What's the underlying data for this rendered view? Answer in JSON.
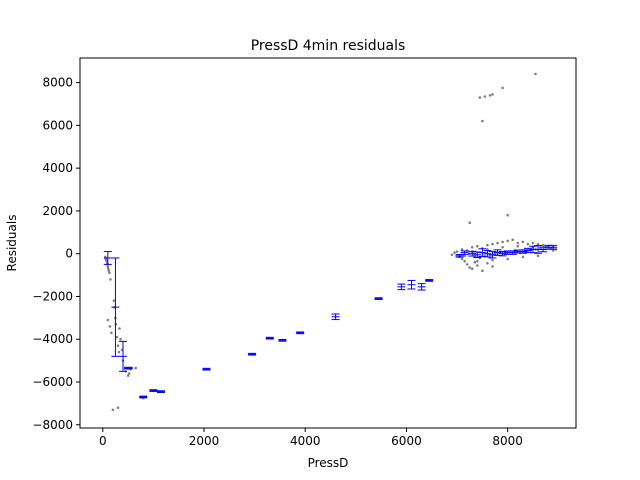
{
  "chart_data": {
    "type": "scatter",
    "title": "PressD 4min residuals",
    "xlabel": "PressD",
    "ylabel": "Residuals",
    "xlim": [
      -450,
      9350
    ],
    "ylim": [
      -8150,
      9150
    ],
    "xticks": [
      0,
      2000,
      4000,
      6000,
      8000
    ],
    "yticks": [
      -8000,
      -6000,
      -4000,
      -2000,
      0,
      2000,
      4000,
      6000,
      8000
    ],
    "grid": false,
    "colors": {
      "scatter": "#808080",
      "errorbar": "#0000ff"
    },
    "series": [
      {
        "kind": "scatter",
        "points": [
          [
            50,
            -150
          ],
          [
            60,
            -250
          ],
          [
            70,
            -300
          ],
          [
            80,
            -350
          ],
          [
            90,
            -450
          ],
          [
            95,
            -500
          ],
          [
            100,
            -600
          ],
          [
            110,
            -700
          ],
          [
            120,
            -800
          ],
          [
            130,
            -900
          ],
          [
            150,
            -1200
          ],
          [
            100,
            -3100
          ],
          [
            140,
            -3400
          ],
          [
            170,
            -3700
          ],
          [
            220,
            -2200
          ],
          [
            230,
            -2500
          ],
          [
            250,
            -3000
          ],
          [
            260,
            -3300
          ],
          [
            280,
            -3900
          ],
          [
            300,
            -4300
          ],
          [
            320,
            -4600
          ],
          [
            330,
            -3500
          ],
          [
            350,
            -4000
          ],
          [
            380,
            -4500
          ],
          [
            400,
            -5000
          ],
          [
            450,
            -5500
          ],
          [
            500,
            -5700
          ],
          [
            520,
            -5600
          ],
          [
            550,
            -5400
          ],
          [
            580,
            -5350
          ],
          [
            650,
            -5350
          ],
          [
            750,
            -6700
          ],
          [
            800,
            -6750
          ],
          [
            1000,
            -6400
          ],
          [
            1100,
            -6450
          ],
          [
            200,
            -7300
          ],
          [
            300,
            -7200
          ],
          [
            7450,
            7300
          ],
          [
            7550,
            7350
          ],
          [
            7650,
            7400
          ],
          [
            7700,
            7450
          ],
          [
            7900,
            7750
          ],
          [
            8550,
            8400
          ],
          [
            7500,
            6200
          ],
          [
            7250,
            1450
          ],
          [
            8000,
            1800
          ],
          [
            6900,
            -50
          ],
          [
            6950,
            50
          ],
          [
            7050,
            -150
          ],
          [
            7100,
            -250
          ],
          [
            7150,
            -350
          ],
          [
            7200,
            -500
          ],
          [
            7250,
            -650
          ],
          [
            7300,
            -700
          ],
          [
            7350,
            -400
          ],
          [
            7400,
            -550
          ],
          [
            7500,
            -800
          ],
          [
            7600,
            -450
          ],
          [
            7700,
            -600
          ],
          [
            7000,
            100
          ],
          [
            7100,
            200
          ],
          [
            7200,
            150
          ],
          [
            7300,
            300
          ],
          [
            7400,
            350
          ],
          [
            7500,
            250
          ],
          [
            7600,
            400
          ],
          [
            7700,
            450
          ],
          [
            7800,
            500
          ],
          [
            7900,
            550
          ],
          [
            8000,
            600
          ],
          [
            8100,
            650
          ],
          [
            8200,
            500
          ],
          [
            8300,
            550
          ],
          [
            8400,
            450
          ],
          [
            8500,
            500
          ],
          [
            8600,
            450
          ],
          [
            8700,
            400
          ],
          [
            8800,
            350
          ],
          [
            8900,
            300
          ],
          [
            7150,
            -100
          ],
          [
            7250,
            0
          ],
          [
            7350,
            -150
          ],
          [
            7450,
            -200
          ],
          [
            7550,
            -100
          ],
          [
            7650,
            -50
          ],
          [
            7750,
            0
          ],
          [
            7850,
            50
          ],
          [
            7950,
            0
          ],
          [
            8050,
            100
          ],
          [
            8150,
            150
          ],
          [
            8250,
            50
          ],
          [
            8350,
            100
          ],
          [
            8450,
            150
          ],
          [
            8550,
            200
          ],
          [
            8650,
            250
          ],
          [
            8750,
            300
          ],
          [
            8850,
            250
          ],
          [
            8950,
            200
          ],
          [
            7300,
            100
          ],
          [
            7600,
            200
          ],
          [
            7900,
            300
          ],
          [
            8200,
            350
          ],
          [
            8500,
            300
          ],
          [
            8800,
            350
          ],
          [
            7400,
            -350
          ],
          [
            7700,
            -300
          ],
          [
            8000,
            -250
          ],
          [
            8300,
            -150
          ],
          [
            8600,
            -100
          ],
          [
            8900,
            150
          ]
        ]
      },
      {
        "kind": "errorbar",
        "bars": [
          [
            100,
            -200,
            300
          ],
          [
            250,
            -2500,
            2300
          ],
          [
            400,
            -4800,
            700
          ],
          [
            500,
            -5350,
            40
          ],
          [
            800,
            -6700,
            40
          ],
          [
            1000,
            -6400,
            40
          ],
          [
            1150,
            -6450,
            40
          ],
          [
            2050,
            -5400,
            40
          ],
          [
            2950,
            -4700,
            40
          ],
          [
            3300,
            -3950,
            40
          ],
          [
            3550,
            -4050,
            40
          ],
          [
            3900,
            -3700,
            40
          ],
          [
            4600,
            -2950,
            130
          ],
          [
            5450,
            -2100,
            40
          ],
          [
            5900,
            -1550,
            130
          ],
          [
            6100,
            -1450,
            200
          ],
          [
            6300,
            -1550,
            150
          ],
          [
            6450,
            -1250,
            40
          ],
          [
            7050,
            -100,
            60
          ],
          [
            7150,
            50,
            80
          ],
          [
            7300,
            0,
            110
          ],
          [
            7400,
            -50,
            130
          ],
          [
            7500,
            50,
            180
          ],
          [
            7600,
            0,
            150
          ],
          [
            7700,
            -50,
            150
          ],
          [
            7800,
            50,
            130
          ],
          [
            7900,
            0,
            100
          ],
          [
            8000,
            50,
            80
          ],
          [
            8100,
            50,
            80
          ],
          [
            8200,
            100,
            70
          ],
          [
            8300,
            100,
            80
          ],
          [
            8400,
            150,
            100
          ],
          [
            8500,
            200,
            150
          ],
          [
            8600,
            200,
            180
          ],
          [
            8700,
            200,
            110
          ],
          [
            8800,
            300,
            90
          ],
          [
            8900,
            300,
            90
          ]
        ]
      }
    ]
  }
}
